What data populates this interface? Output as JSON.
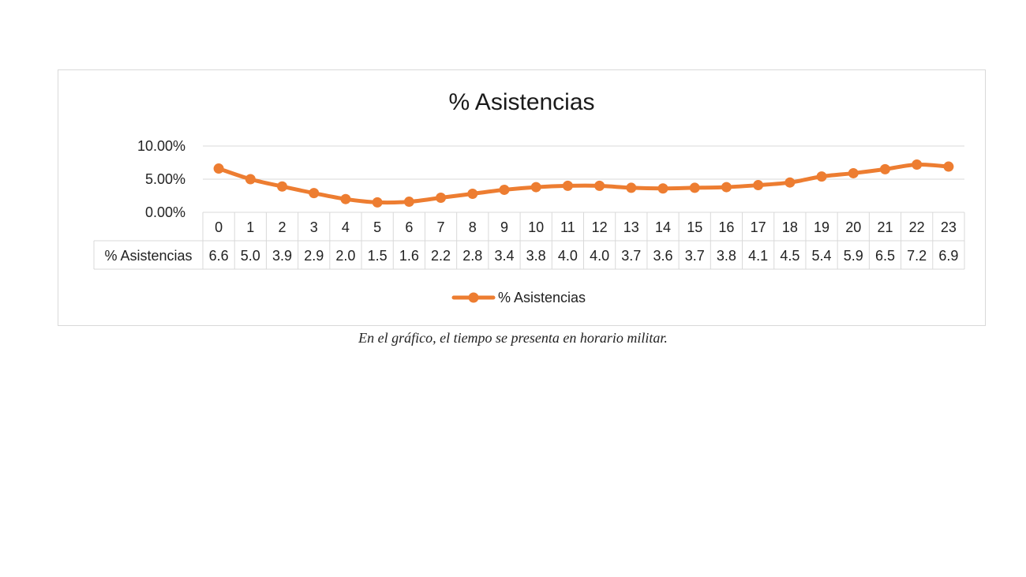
{
  "chart_data": {
    "type": "line",
    "title": "% Asistencias",
    "categories": [
      "0",
      "1",
      "2",
      "3",
      "4",
      "5",
      "6",
      "7",
      "8",
      "9",
      "10",
      "11",
      "12",
      "13",
      "14",
      "15",
      "16",
      "17",
      "18",
      "19",
      "20",
      "21",
      "22",
      "23"
    ],
    "series": [
      {
        "name": "% Asistencias",
        "color": "#ed7d31",
        "values": [
          6.6,
          5.0,
          3.9,
          2.9,
          2.0,
          1.5,
          1.6,
          2.2,
          2.8,
          3.4,
          3.8,
          4.0,
          4.0,
          3.7,
          3.6,
          3.7,
          3.8,
          4.1,
          4.5,
          5.4,
          5.9,
          6.5,
          7.2,
          6.9
        ],
        "table_values": [
          "6.6",
          "5.0",
          "3.9",
          "2.9",
          "2.0",
          "1.5",
          "1.6",
          "2.2",
          "2.8",
          "3.4",
          "3.8",
          "4.0",
          "4.0",
          "3.7",
          "3.6",
          "3.7",
          "3.8",
          "4.1",
          "4.5",
          "5.4",
          "5.9",
          "6.5",
          "7.2",
          "6.9"
        ]
      }
    ],
    "y_ticks": [
      "0.00%",
      "5.00%",
      "10.00%"
    ],
    "ylim": [
      0,
      10
    ],
    "grid": true,
    "data_table": true,
    "legend_position": "bottom"
  },
  "caption": "En el gráfico, el tiempo se presenta en horario militar."
}
